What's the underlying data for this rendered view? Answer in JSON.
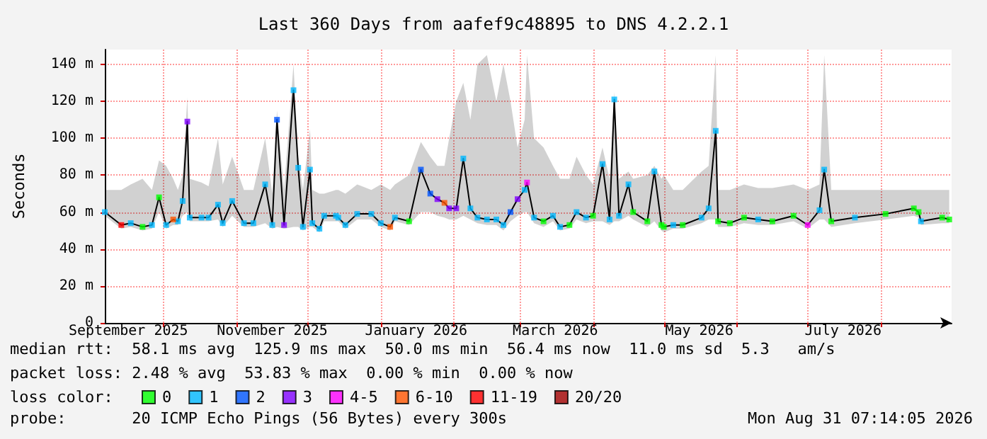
{
  "chart_data": {
    "type": "line",
    "title": "Last 360 Days from aafef9c48895 to DNS 4.2.2.1",
    "ylabel": "Seconds",
    "legend_title": "loss color:",
    "legend": "bottom left",
    "grid": true,
    "marker": "square",
    "line_style": "solid",
    "xlim": [
      "2025-09-06",
      "2026-08-31"
    ],
    "xticks": [
      {
        "value": "2025-09-16",
        "label": "September 2025"
      },
      {
        "value": "2025-10-01",
        "label": null
      },
      {
        "value": "2025-11-01",
        "label": null
      },
      {
        "value": "2025-11-16",
        "label": "November 2025"
      },
      {
        "value": "2025-12-01",
        "label": null
      },
      {
        "value": "2026-01-01",
        "label": null
      },
      {
        "value": "2026-01-16",
        "label": "January 2026"
      },
      {
        "value": "2026-02-01",
        "label": null
      },
      {
        "value": "2026-03-01",
        "label": null
      },
      {
        "value": "2026-03-16",
        "label": "March 2026"
      },
      {
        "value": "2026-04-01",
        "label": null
      },
      {
        "value": "2026-05-01",
        "label": null
      },
      {
        "value": "2026-05-16",
        "label": "May 2026"
      },
      {
        "value": "2026-06-01",
        "label": null
      },
      {
        "value": "2026-07-01",
        "label": null
      },
      {
        "value": "2026-07-16",
        "label": "July 2026"
      },
      {
        "value": "2026-08-01",
        "label": null
      }
    ],
    "ylim": [
      0,
      148
    ],
    "yticks": [
      0,
      {
        "value": 20,
        "label": "20 m"
      },
      {
        "value": 40,
        "label": "40 m"
      },
      {
        "value": 60,
        "label": "60 m"
      },
      {
        "value": 80,
        "label": "80 m"
      },
      {
        "value": 100,
        "label": "100 m"
      },
      {
        "value": 120,
        "label": "120 m"
      },
      {
        "value": 140,
        "label": "140 m"
      }
    ],
    "series": [
      {
        "color": "#000000",
        "marker": "none",
        "x": [
          "2025-09-06",
          "2025-09-13",
          "2025-09-17",
          "2025-09-22",
          "2025-09-26",
          "2025-09-29",
          "2025-10-02",
          "2025-10-05",
          "2025-10-07",
          "2025-10-09",
          "2025-10-11",
          "2025-10-12",
          "2025-10-17",
          "2025-10-20",
          "2025-10-24",
          "2025-10-26",
          "2025-10-30",
          "2025-11-04",
          "2025-11-08",
          "2025-11-13",
          "2025-11-16",
          "2025-11-18",
          "2025-11-21",
          "2025-11-25",
          "2025-11-27",
          "2025-11-29",
          "2025-12-02",
          "2025-12-03",
          "2025-12-06",
          "2025-12-08",
          "2025-12-13",
          "2025-12-14",
          "2025-12-17",
          "2025-12-22",
          "2025-12-28",
          "2026-01-01",
          "2026-01-05",
          "2026-01-07",
          "2026-01-13",
          "2026-01-18",
          "2026-01-22",
          "2026-01-25",
          "2026-01-28",
          "2026-01-30",
          "2026-02-02",
          "2026-02-05",
          "2026-02-08",
          "2026-02-11",
          "2026-02-15",
          "2026-02-19",
          "2026-02-22",
          "2026-02-25",
          "2026-02-28",
          "2026-03-03",
          "2026-03-04",
          "2026-03-07",
          "2026-03-11",
          "2026-03-15",
          "2026-03-18",
          "2026-03-22",
          "2026-03-25",
          "2026-03-29",
          "2026-04-01",
          "2026-04-05",
          "2026-04-08",
          "2026-04-10",
          "2026-04-12",
          "2026-04-16",
          "2026-04-18",
          "2026-04-24",
          "2026-04-27",
          "2026-04-30",
          "2026-05-01",
          "2026-05-05",
          "2026-05-09",
          "2026-05-17",
          "2026-05-20",
          "2026-05-23",
          "2026-05-24",
          "2026-05-29",
          "2026-06-04",
          "2026-06-10",
          "2026-06-16",
          "2026-06-25",
          "2026-07-01",
          "2026-07-06",
          "2026-07-08",
          "2026-07-11",
          "2026-07-21",
          "2026-08-03",
          "2026-08-15",
          "2026-08-17",
          "2026-08-18",
          "2026-08-27",
          "2026-08-30"
        ],
        "values": [
          60,
          53,
          54,
          52,
          53,
          68,
          53,
          56,
          55,
          66,
          109,
          57,
          57,
          57,
          64,
          54,
          66,
          54,
          54,
          75,
          53,
          110,
          53,
          126,
          84,
          52,
          83,
          54,
          51,
          58,
          58,
          57,
          53,
          59,
          59,
          54,
          52,
          57,
          55,
          83,
          70,
          67,
          65,
          62,
          62,
          89,
          62,
          57,
          56,
          56,
          53,
          60,
          67,
          72,
          76,
          57,
          55,
          58,
          52,
          53,
          60,
          57,
          58,
          86,
          56,
          121,
          58,
          75,
          60,
          55,
          82,
          53,
          52,
          53,
          53,
          57,
          62,
          104,
          55,
          54,
          57,
          56,
          55,
          58,
          53,
          61,
          83,
          55,
          57,
          59,
          62,
          60,
          55,
          57,
          56
        ],
        "lower": [
          58,
          51,
          52,
          50,
          51,
          60,
          51,
          53,
          53,
          58,
          60,
          55,
          55,
          55,
          56,
          52,
          58,
          52,
          52,
          54,
          51,
          52,
          51,
          52,
          52,
          50,
          52,
          52,
          49,
          55,
          55,
          55,
          51,
          56,
          56,
          52,
          50,
          55,
          53,
          60,
          60,
          58,
          57,
          56,
          56,
          58,
          56,
          54,
          53,
          53,
          50,
          55,
          58,
          60,
          60,
          54,
          52,
          55,
          50,
          51,
          56,
          54,
          55,
          55,
          53,
          55,
          55,
          58,
          56,
          52,
          55,
          50,
          49,
          51,
          51,
          54,
          56,
          56,
          52,
          52,
          54,
          53,
          53,
          55,
          51,
          56,
          56,
          52,
          54,
          56,
          58,
          57,
          53,
          54,
          54
        ],
        "upper": [
          72,
          72,
          75,
          78,
          72,
          88,
          85,
          78,
          72,
          80,
          122,
          78,
          76,
          74,
          100,
          75,
          90,
          72,
          72,
          100,
          70,
          115,
          72,
          140,
          90,
          72,
          105,
          72,
          70,
          70,
          72,
          72,
          70,
          75,
          72,
          75,
          72,
          75,
          80,
          98,
          90,
          85,
          85,
          100,
          120,
          130,
          110,
          140,
          145,
          120,
          140,
          120,
          95,
          110,
          145,
          100,
          95,
          85,
          78,
          78,
          90,
          80,
          75,
          95,
          78,
          125,
          78,
          82,
          78,
          80,
          85,
          78,
          80,
          72,
          72,
          82,
          85,
          145,
          72,
          72,
          75,
          73,
          73,
          75,
          72,
          75,
          145,
          72,
          72,
          72,
          72,
          72,
          72,
          72,
          72
        ]
      },
      {
        "type": "scatter",
        "name": "0",
        "color": "#00ff00",
        "x": [
          "2025-09-22",
          "2025-09-29",
          "2026-01-13",
          "2026-03-11",
          "2026-03-22",
          "2026-04-01",
          "2026-04-18",
          "2026-04-24",
          "2026-04-30",
          "2026-05-01",
          "2026-05-09",
          "2026-05-24",
          "2026-05-29",
          "2026-06-04",
          "2026-06-16",
          "2026-06-25",
          "2026-07-11",
          "2026-08-03",
          "2026-08-15",
          "2026-08-17",
          "2026-08-27",
          "2026-08-30"
        ],
        "values": [
          52,
          68,
          55,
          55,
          53,
          58,
          60,
          55,
          53,
          52,
          53,
          55,
          54,
          57,
          55,
          58,
          55,
          59,
          62,
          60,
          57,
          56
        ]
      },
      {
        "type": "scatter",
        "name": "1",
        "color": "#00b8ff",
        "x": [
          "2025-09-06",
          "2025-09-17",
          "2025-09-26",
          "2025-10-02",
          "2025-10-07",
          "2025-10-09",
          "2025-10-12",
          "2025-10-17",
          "2025-10-20",
          "2025-10-24",
          "2025-10-26",
          "2025-10-30",
          "2025-11-04",
          "2025-11-08",
          "2025-11-13",
          "2025-11-16",
          "2025-11-25",
          "2025-11-27",
          "2025-11-29",
          "2025-12-02",
          "2025-12-03",
          "2025-12-06",
          "2025-12-08",
          "2025-12-13",
          "2025-12-14",
          "2025-12-17",
          "2025-12-22",
          "2025-12-28",
          "2026-01-01",
          "2026-01-07",
          "2026-02-05",
          "2026-02-08",
          "2026-02-11",
          "2026-02-15",
          "2026-02-19",
          "2026-02-22",
          "2026-03-03",
          "2026-03-07",
          "2026-03-15",
          "2026-03-18",
          "2026-03-25",
          "2026-03-29",
          "2026-04-05",
          "2026-04-08",
          "2026-04-10",
          "2026-04-12",
          "2026-04-16",
          "2026-04-27",
          "2026-05-05",
          "2026-05-17",
          "2026-05-20",
          "2026-05-23",
          "2026-06-10",
          "2026-07-06",
          "2026-07-08",
          "2026-07-21",
          "2026-08-18"
        ],
        "values": [
          60,
          54,
          53,
          53,
          55,
          66,
          57,
          57,
          57,
          64,
          54,
          66,
          54,
          54,
          75,
          53,
          126,
          84,
          52,
          83,
          54,
          51,
          58,
          58,
          57,
          53,
          59,
          59,
          54,
          57,
          89,
          62,
          57,
          56,
          56,
          53,
          72,
          57,
          58,
          52,
          60,
          57,
          86,
          56,
          121,
          58,
          75,
          82,
          53,
          57,
          62,
          104,
          56,
          61,
          83,
          57,
          55
        ]
      },
      {
        "type": "scatter",
        "name": "2",
        "color": "#0055ff",
        "x": [
          "2025-11-18",
          "2026-01-18",
          "2026-01-22",
          "2026-02-25"
        ],
        "values": [
          110,
          83,
          70,
          60
        ]
      },
      {
        "type": "scatter",
        "name": "3",
        "color": "#8000ff",
        "x": [
          "2025-10-11",
          "2025-11-21",
          "2026-01-25",
          "2026-01-30",
          "2026-02-02",
          "2026-02-28"
        ],
        "values": [
          109,
          53,
          67,
          62,
          62,
          67
        ]
      },
      {
        "type": "scatter",
        "name": "4-5",
        "color": "#ff00ff",
        "x": [
          "2026-03-04",
          "2026-07-01"
        ],
        "values": [
          76,
          53
        ]
      },
      {
        "type": "scatter",
        "name": "6-10",
        "color": "#ff5500",
        "x": [
          "2025-10-05",
          "2026-01-05",
          "2026-01-28"
        ],
        "values": [
          56,
          52,
          65
        ]
      },
      {
        "type": "scatter",
        "name": "11-19",
        "color": "#ff0000",
        "x": [
          "2025-09-13"
        ],
        "values": [
          53
        ]
      },
      {
        "type": "scatter",
        "name": "20/20",
        "color": "#a10000"
      }
    ],
    "annotations": [
      "median rtt:  58.1 ms avg  125.9 ms max  50.0 ms min  56.4 ms now  11.0 ms sd  5.3   am/s",
      "packet loss: 2.48 % avg  53.83 % max  0.00 % min  0.00 % now",
      "probe:       20 ICMP Echo Pings (56 Bytes) every 300s",
      "Mon Aug 31 07:14:05 2026"
    ]
  }
}
